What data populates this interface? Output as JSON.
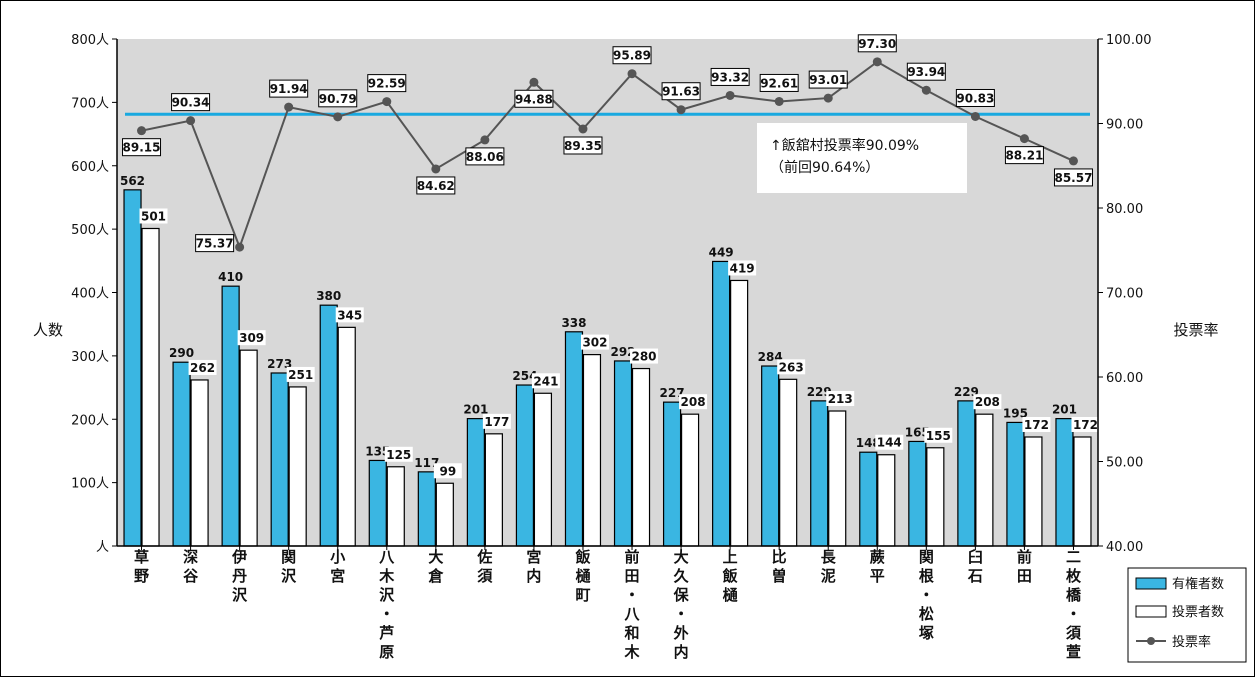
{
  "chart_data": {
    "type": "bar",
    "categories": [
      "草野",
      "深谷",
      "伊丹沢",
      "関沢",
      "小宮",
      "八木沢・芦原",
      "大倉",
      "佐須",
      "宮内",
      "飯樋町",
      "前田・八和木",
      "大久保・外内",
      "上飯樋",
      "比曽",
      "長泥",
      "蕨平",
      "関根・松塚",
      "臼石",
      "前田",
      "二枚橋・須萱"
    ],
    "series": [
      {
        "name": "有権者数",
        "type": "bar",
        "color": "#3ab6e2",
        "values": [
          562,
          290,
          410,
          273,
          380,
          135,
          117,
          201,
          254,
          338,
          292,
          227,
          449,
          284,
          229,
          148,
          165,
          229,
          195,
          201
        ]
      },
      {
        "name": "投票者数",
        "type": "bar",
        "color": "#ffffff",
        "values": [
          501,
          262,
          309,
          251,
          345,
          125,
          99,
          177,
          241,
          302,
          280,
          208,
          419,
          263,
          213,
          144,
          155,
          208,
          172,
          172
        ]
      },
      {
        "name": "投票率",
        "type": "line",
        "axis": "right",
        "color": "#555555",
        "values": [
          89.15,
          90.34,
          75.37,
          91.94,
          90.79,
          92.59,
          84.62,
          88.06,
          94.88,
          89.35,
          95.89,
          91.63,
          93.32,
          92.61,
          93.01,
          97.3,
          93.94,
          90.83,
          88.21,
          85.57
        ],
        "labels": [
          "89.15",
          "90.34",
          "75.37",
          "91.94",
          "90.79",
          "92.59",
          "84.62",
          "88.06",
          "94.88",
          "89.35",
          "95.89",
          "91.63",
          "93.32",
          "92.61",
          "93.01",
          "97.30",
          "93.94",
          "90.83",
          "88.21",
          "85.57"
        ]
      }
    ],
    "y_left": {
      "label": "人数",
      "min": 0,
      "max": 800,
      "ticks": [
        {
          "v": 0,
          "t": "人"
        },
        {
          "v": 100,
          "t": "100人"
        },
        {
          "v": 200,
          "t": "200人"
        },
        {
          "v": 300,
          "t": "300人"
        },
        {
          "v": 400,
          "t": "400人"
        },
        {
          "v": 500,
          "t": "500人"
        },
        {
          "v": 600,
          "t": "600人"
        },
        {
          "v": 700,
          "t": "700人"
        },
        {
          "v": 800,
          "t": "800人"
        }
      ]
    },
    "y_right": {
      "label": "投票率",
      "min": 40,
      "max": 100,
      "ticks": [
        {
          "v": 40,
          "t": "40.00"
        },
        {
          "v": 50,
          "t": "50.00"
        },
        {
          "v": 60,
          "t": "60.00"
        },
        {
          "v": 70,
          "t": "70.00"
        },
        {
          "v": 80,
          "t": "80.00"
        },
        {
          "v": 90,
          "t": "90.00"
        },
        {
          "v": 100,
          "t": "100.00"
        }
      ]
    },
    "reference_line": {
      "value": 91.1,
      "axis": "right",
      "color": "#19a9e0"
    },
    "annotation": {
      "line1": "↑飯舘村投票率90.09%",
      "line2": "（前回90.64%）"
    },
    "legend": {
      "position": "bottom-right"
    },
    "plot_background": "#d8d8d8"
  }
}
